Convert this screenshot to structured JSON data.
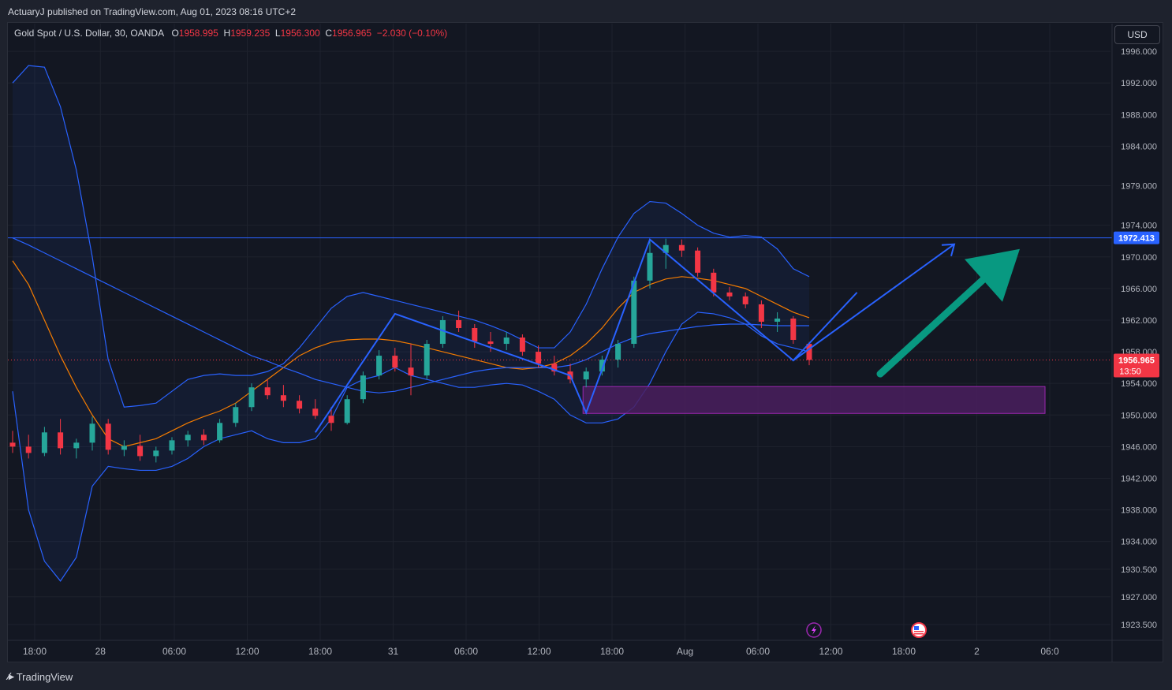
{
  "publisher_line": "ActuaryJ published on TradingView.com, Aug 01, 2023 08:16 UTC+2",
  "brand": "TradingView",
  "legend": {
    "symbol": "Gold Spot / U.S. Dollar, 30, OANDA",
    "o_label": "O",
    "o_value": "1958.995",
    "h_label": "H",
    "h_value": "1959.235",
    "l_label": "L",
    "l_value": "1956.300",
    "c_label": "C",
    "c_value": "1956.965",
    "change": "−2.030 (−0.10%)"
  },
  "currency_button": "USD",
  "colors": {
    "background": "#131722",
    "grid": "#1e222d",
    "up_candle": "#26a69a",
    "down_candle": "#f23645",
    "bollinger": "#2962ff",
    "moving_average": "#f57c00",
    "zone_fill": "#4a1f5e",
    "zone_border": "#9c27b0",
    "arrow_green": "#089981",
    "level_line": "#2962ff"
  },
  "chart_data": {
    "type": "candlestick",
    "y_ticks": [
      1996.0,
      1992.0,
      1988.0,
      1984.0,
      1979.0,
      1974.0,
      1970.0,
      1966.0,
      1962.0,
      1958.0,
      1954.0,
      1950.0,
      1946.0,
      1942.0,
      1938.0,
      1934.0,
      1930.5,
      1927.0,
      1923.5
    ],
    "y_tick_labels": [
      "1996.000",
      "1992.000",
      "1988.000",
      "1984.000",
      "1979.000",
      "1974.000",
      "1970.000",
      "1966.000",
      "1962.000",
      "1958.000",
      "1954.000",
      "1950.000",
      "1946.000",
      "1942.000",
      "1938.000",
      "1934.000",
      "1930.500",
      "1927.000",
      "1923.500"
    ],
    "x_tick_labels": [
      "18:00",
      "28",
      "06:00",
      "12:00",
      "18:00",
      "31",
      "06:00",
      "12:00",
      "18:00",
      "Aug",
      "06:00",
      "12:00",
      "18:00",
      "2",
      "06:0"
    ],
    "ylim": [
      1921.5,
      1999.5
    ],
    "level_line": {
      "value": 1972.413,
      "label": "1972.413"
    },
    "last_price": {
      "value": 1956.965,
      "label": "1956.965",
      "countdown": "13:50"
    },
    "zone": {
      "low": 1950.2,
      "high": 1953.6
    },
    "bollinger_upper": [
      1992.0,
      1994.2,
      1994.0,
      1989.0,
      1981.0,
      1970.0,
      1957.0,
      1951.0,
      1951.2,
      1951.5,
      1953.0,
      1954.5,
      1955.0,
      1955.2,
      1955.0,
      1955.0,
      1955.5,
      1956.5,
      1958.5,
      1961.0,
      1963.5,
      1965.0,
      1965.5,
      1965.0,
      1964.5,
      1964.0,
      1963.5,
      1963.0,
      1962.5,
      1962.0,
      1961.3,
      1960.5,
      1959.5,
      1958.5,
      1958.5,
      1960.5,
      1964.0,
      1968.5,
      1972.5,
      1975.5,
      1977.0,
      1976.8,
      1975.5,
      1974.0,
      1973.0,
      1972.5,
      1972.7,
      1972.5,
      1971.0,
      1968.5,
      1967.5
    ],
    "bollinger_lower": [
      1953.0,
      1938.0,
      1931.5,
      1929.0,
      1932.0,
      1941.0,
      1943.5,
      1943.2,
      1943.0,
      1943.0,
      1943.5,
      1944.5,
      1946.0,
      1947.0,
      1947.5,
      1948.0,
      1947.0,
      1946.5,
      1946.5,
      1947.0,
      1949.5,
      1953.5,
      1954.5,
      1955.0,
      1956.0,
      1955.0,
      1954.5,
      1954.0,
      1953.5,
      1953.5,
      1953.8,
      1954.0,
      1953.8,
      1953.0,
      1952.0,
      1950.0,
      1949.0,
      1949.0,
      1949.5,
      1951.0,
      1954.0,
      1958.0,
      1961.5,
      1963.0,
      1962.8,
      1962.3,
      1961.5,
      1960.0,
      1959.0,
      1958.5,
      1958.0
    ],
    "ma_orange": [
      1969.5,
      1966.5,
      1962.0,
      1957.5,
      1953.5,
      1950.0,
      1947.0,
      1946.0,
      1946.5,
      1947.0,
      1948.0,
      1949.0,
      1949.8,
      1950.5,
      1951.5,
      1953.0,
      1954.5,
      1956.0,
      1957.5,
      1958.5,
      1959.2,
      1959.5,
      1959.6,
      1959.6,
      1959.4,
      1959.0,
      1958.5,
      1958.0,
      1957.5,
      1957.0,
      1956.5,
      1956.0,
      1955.8,
      1956.0,
      1956.5,
      1957.5,
      1959.0,
      1961.0,
      1963.5,
      1965.5,
      1966.5,
      1967.2,
      1967.5,
      1967.3,
      1967.0,
      1966.5,
      1966.0,
      1965.0,
      1964.0,
      1963.0,
      1962.3
    ],
    "ma_blue": [
      1972.4,
      1971.5,
      1970.5,
      1969.5,
      1968.5,
      1967.5,
      1966.5,
      1965.5,
      1964.5,
      1963.5,
      1962.5,
      1961.5,
      1960.5,
      1959.5,
      1958.5,
      1957.5,
      1956.8,
      1956.0,
      1955.3,
      1954.5,
      1954.0,
      1953.5,
      1953.0,
      1952.8,
      1953.0,
      1953.5,
      1954.0,
      1954.5,
      1955.0,
      1955.5,
      1955.8,
      1956.0,
      1956.0,
      1956.0,
      1956.0,
      1956.3,
      1957.0,
      1958.0,
      1959.0,
      1959.8,
      1960.3,
      1960.6,
      1960.9,
      1961.2,
      1961.4,
      1961.5,
      1961.5,
      1961.4,
      1961.3,
      1961.3,
      1961.3
    ],
    "candles": [
      {
        "o": 1946.5,
        "h": 1948.0,
        "l": 1945.2,
        "c": 1946.0
      },
      {
        "o": 1946.0,
        "h": 1947.5,
        "l": 1944.5,
        "c": 1945.2
      },
      {
        "o": 1945.2,
        "h": 1948.5,
        "l": 1944.8,
        "c": 1947.8
      },
      {
        "o": 1947.8,
        "h": 1949.5,
        "l": 1945.0,
        "c": 1945.8
      },
      {
        "o": 1945.8,
        "h": 1947.0,
        "l": 1944.5,
        "c": 1946.5
      },
      {
        "o": 1946.5,
        "h": 1949.8,
        "l": 1945.5,
        "c": 1948.9
      },
      {
        "o": 1948.9,
        "h": 1949.5,
        "l": 1945.0,
        "c": 1945.6
      },
      {
        "o": 1945.6,
        "h": 1946.8,
        "l": 1944.8,
        "c": 1946.1
      },
      {
        "o": 1946.1,
        "h": 1947.5,
        "l": 1944.2,
        "c": 1944.8
      },
      {
        "o": 1944.8,
        "h": 1946.0,
        "l": 1944.0,
        "c": 1945.5
      },
      {
        "o": 1945.5,
        "h": 1947.2,
        "l": 1945.0,
        "c": 1946.8
      },
      {
        "o": 1946.8,
        "h": 1948.0,
        "l": 1946.0,
        "c": 1947.5
      },
      {
        "o": 1947.5,
        "h": 1948.2,
        "l": 1946.2,
        "c": 1946.8
      },
      {
        "o": 1946.8,
        "h": 1949.5,
        "l": 1946.5,
        "c": 1949.0
      },
      {
        "o": 1949.0,
        "h": 1951.5,
        "l": 1948.5,
        "c": 1951.0
      },
      {
        "o": 1951.0,
        "h": 1954.0,
        "l": 1950.5,
        "c": 1953.5
      },
      {
        "o": 1953.5,
        "h": 1954.5,
        "l": 1952.0,
        "c": 1952.5
      },
      {
        "o": 1952.5,
        "h": 1953.8,
        "l": 1951.0,
        "c": 1951.8
      },
      {
        "o": 1951.8,
        "h": 1952.5,
        "l": 1950.2,
        "c": 1950.8
      },
      {
        "o": 1950.8,
        "h": 1952.0,
        "l": 1949.5,
        "c": 1949.9
      },
      {
        "o": 1949.9,
        "h": 1951.0,
        "l": 1948.0,
        "c": 1949.0
      },
      {
        "o": 1949.0,
        "h": 1952.5,
        "l": 1948.8,
        "c": 1952.0
      },
      {
        "o": 1952.0,
        "h": 1955.5,
        "l": 1951.5,
        "c": 1955.0
      },
      {
        "o": 1955.0,
        "h": 1958.2,
        "l": 1954.5,
        "c": 1957.5
      },
      {
        "o": 1957.5,
        "h": 1958.5,
        "l": 1955.5,
        "c": 1956.0
      },
      {
        "o": 1956.0,
        "h": 1959.0,
        "l": 1952.5,
        "c": 1955.0
      },
      {
        "o": 1955.0,
        "h": 1959.5,
        "l": 1954.5,
        "c": 1959.0
      },
      {
        "o": 1959.0,
        "h": 1962.5,
        "l": 1958.5,
        "c": 1962.0
      },
      {
        "o": 1962.0,
        "h": 1963.2,
        "l": 1960.5,
        "c": 1961.0
      },
      {
        "o": 1961.0,
        "h": 1961.5,
        "l": 1958.5,
        "c": 1959.3
      },
      {
        "o": 1959.3,
        "h": 1960.5,
        "l": 1958.0,
        "c": 1959.0
      },
      {
        "o": 1959.0,
        "h": 1960.5,
        "l": 1958.2,
        "c": 1959.8
      },
      {
        "o": 1959.8,
        "h": 1960.2,
        "l": 1957.5,
        "c": 1958.0
      },
      {
        "o": 1958.0,
        "h": 1958.8,
        "l": 1956.0,
        "c": 1956.5
      },
      {
        "o": 1956.5,
        "h": 1957.5,
        "l": 1955.0,
        "c": 1955.5
      },
      {
        "o": 1955.5,
        "h": 1956.5,
        "l": 1954.0,
        "c": 1954.5
      },
      {
        "o": 1954.5,
        "h": 1956.0,
        "l": 1953.5,
        "c": 1955.5
      },
      {
        "o": 1955.5,
        "h": 1957.5,
        "l": 1955.0,
        "c": 1957.0
      },
      {
        "o": 1957.0,
        "h": 1959.5,
        "l": 1956.0,
        "c": 1959.0
      },
      {
        "o": 1959.0,
        "h": 1967.5,
        "l": 1958.5,
        "c": 1967.0
      },
      {
        "o": 1967.0,
        "h": 1972.2,
        "l": 1966.0,
        "c": 1970.5
      },
      {
        "o": 1970.5,
        "h": 1972.3,
        "l": 1968.5,
        "c": 1971.5
      },
      {
        "o": 1971.5,
        "h": 1972.2,
        "l": 1970.0,
        "c": 1970.8
      },
      {
        "o": 1970.8,
        "h": 1971.2,
        "l": 1967.5,
        "c": 1968.0
      },
      {
        "o": 1968.0,
        "h": 1968.5,
        "l": 1965.0,
        "c": 1965.5
      },
      {
        "o": 1965.5,
        "h": 1966.2,
        "l": 1964.5,
        "c": 1965.0
      },
      {
        "o": 1965.0,
        "h": 1965.5,
        "l": 1963.5,
        "c": 1964.0
      },
      {
        "o": 1964.0,
        "h": 1964.5,
        "l": 1961.0,
        "c": 1961.8
      },
      {
        "o": 1961.8,
        "h": 1963.0,
        "l": 1960.5,
        "c": 1962.2
      },
      {
        "o": 1962.2,
        "h": 1962.5,
        "l": 1959.0,
        "c": 1959.5
      },
      {
        "o": 1958.995,
        "h": 1959.235,
        "l": 1956.3,
        "c": 1956.965
      }
    ],
    "zigzag_points": [
      [
        19,
        1947.8
      ],
      [
        24,
        1962.8
      ],
      [
        35,
        1955.0
      ],
      [
        36,
        1950.3
      ],
      [
        40,
        1972.2
      ],
      [
        49,
        1956.9
      ],
      [
        53,
        1965.5
      ]
    ],
    "arrow_blue": {
      "from": [
        49,
        1956.9
      ],
      "to": [
        55,
        1971.6
      ]
    },
    "arrow_green": {
      "from": [
        49,
        1955.2
      ],
      "to": [
        55,
        1971.0
      ]
    }
  }
}
